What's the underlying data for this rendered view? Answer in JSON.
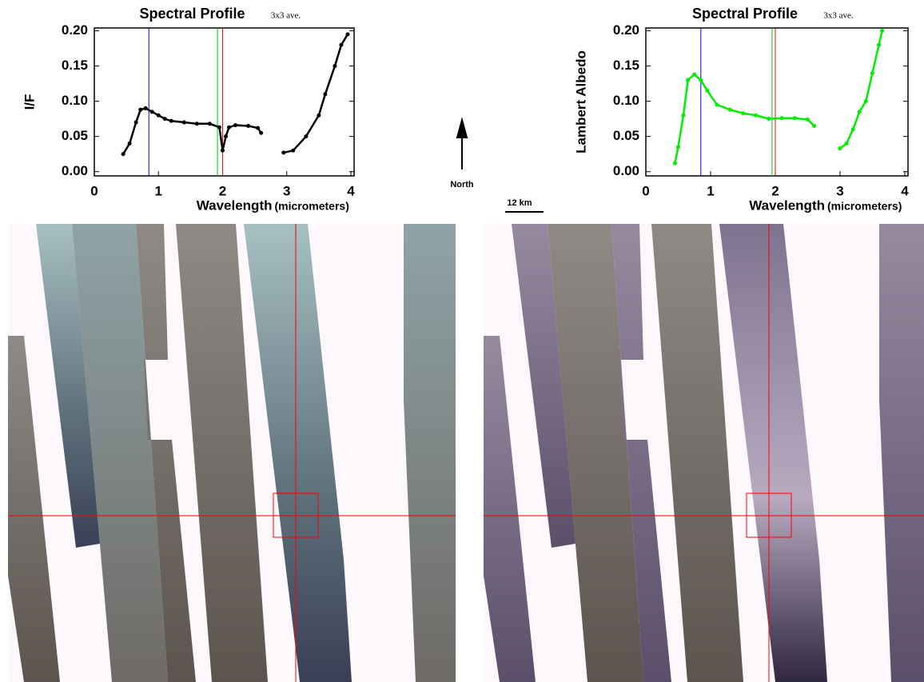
{
  "chart_data": [
    {
      "type": "line",
      "title": "Spectral Profile",
      "subtitle": "3x3 ave.",
      "ylabel": "I/F",
      "xlabel": "Wavelength",
      "xlabel_unit": "(micrometers)",
      "xlim": [
        0,
        4.05
      ],
      "ylim": [
        -0.006,
        0.204
      ],
      "xticks": [
        0,
        1,
        2,
        3,
        4
      ],
      "yticks": [
        {
          "value": 0,
          "label": "0.00"
        },
        0.05,
        {
          "value": 0.1,
          "label": "0.10"
        },
        0.15,
        {
          "value": 0.2,
          "label": "0.20"
        }
      ],
      "vlines": [
        {
          "x": 0.85,
          "color": "#0000ff"
        },
        {
          "x": 1.92,
          "color": "#00cc00"
        },
        {
          "x": 2.0,
          "color": "#ff0000"
        }
      ],
      "series": [
        {
          "color": "#000000",
          "x": [
            0.45,
            0.55,
            0.65,
            0.72,
            0.8,
            0.9,
            1.0,
            1.1,
            1.2,
            1.4,
            1.6,
            1.8,
            1.95,
            2.0,
            2.05,
            2.1,
            2.2,
            2.4,
            2.55,
            2.6,
            null,
            2.95,
            3.1,
            3.3,
            3.5,
            3.6,
            3.75,
            3.85,
            3.95
          ],
          "values": [
            0.025,
            0.04,
            0.07,
            0.088,
            0.09,
            0.085,
            0.08,
            0.075,
            0.072,
            0.07,
            0.068,
            0.068,
            0.063,
            0.03,
            0.05,
            0.063,
            0.066,
            0.065,
            0.062,
            0.055,
            null,
            0.027,
            0.03,
            0.05,
            0.08,
            0.11,
            0.15,
            0.18,
            0.195
          ]
        }
      ]
    },
    {
      "type": "line",
      "title": "Spectral Profile",
      "subtitle": "3x3 ave.",
      "ylabel": "Lambert Albedo",
      "xlabel": "Wavelength",
      "xlabel_unit": "(micrometers)",
      "xlim": [
        0,
        4.05
      ],
      "ylim": [
        -0.006,
        0.204
      ],
      "xticks": [
        0,
        1,
        2,
        3,
        4
      ],
      "yticks": [
        {
          "value": 0,
          "label": "0.00"
        },
        0.05,
        {
          "value": 0.1,
          "label": "0.10"
        },
        0.15,
        {
          "value": 0.2,
          "label": "0.20"
        }
      ],
      "vlines": [
        {
          "x": 0.85,
          "color": "#0000ff"
        },
        {
          "x": 1.95,
          "color": "#00cc00"
        },
        {
          "x": 2.0,
          "color": "#ff0000"
        }
      ],
      "series": [
        {
          "color": "#00ee00",
          "x": [
            0.45,
            0.5,
            0.58,
            0.65,
            0.75,
            0.85,
            0.95,
            1.1,
            1.3,
            1.5,
            1.7,
            1.9,
            2.1,
            2.3,
            2.5,
            2.6,
            null,
            3.0,
            3.1,
            3.2,
            3.3,
            3.4,
            3.5,
            3.6,
            3.65
          ],
          "values": [
            0.012,
            0.035,
            0.08,
            0.13,
            0.138,
            0.13,
            0.115,
            0.095,
            0.088,
            0.083,
            0.08,
            0.075,
            0.076,
            0.076,
            0.074,
            0.065,
            null,
            0.033,
            0.04,
            0.06,
            0.085,
            0.1,
            0.14,
            0.18,
            0.2
          ]
        }
      ]
    }
  ],
  "annotations": {
    "north": "North",
    "scale": "12 km"
  }
}
